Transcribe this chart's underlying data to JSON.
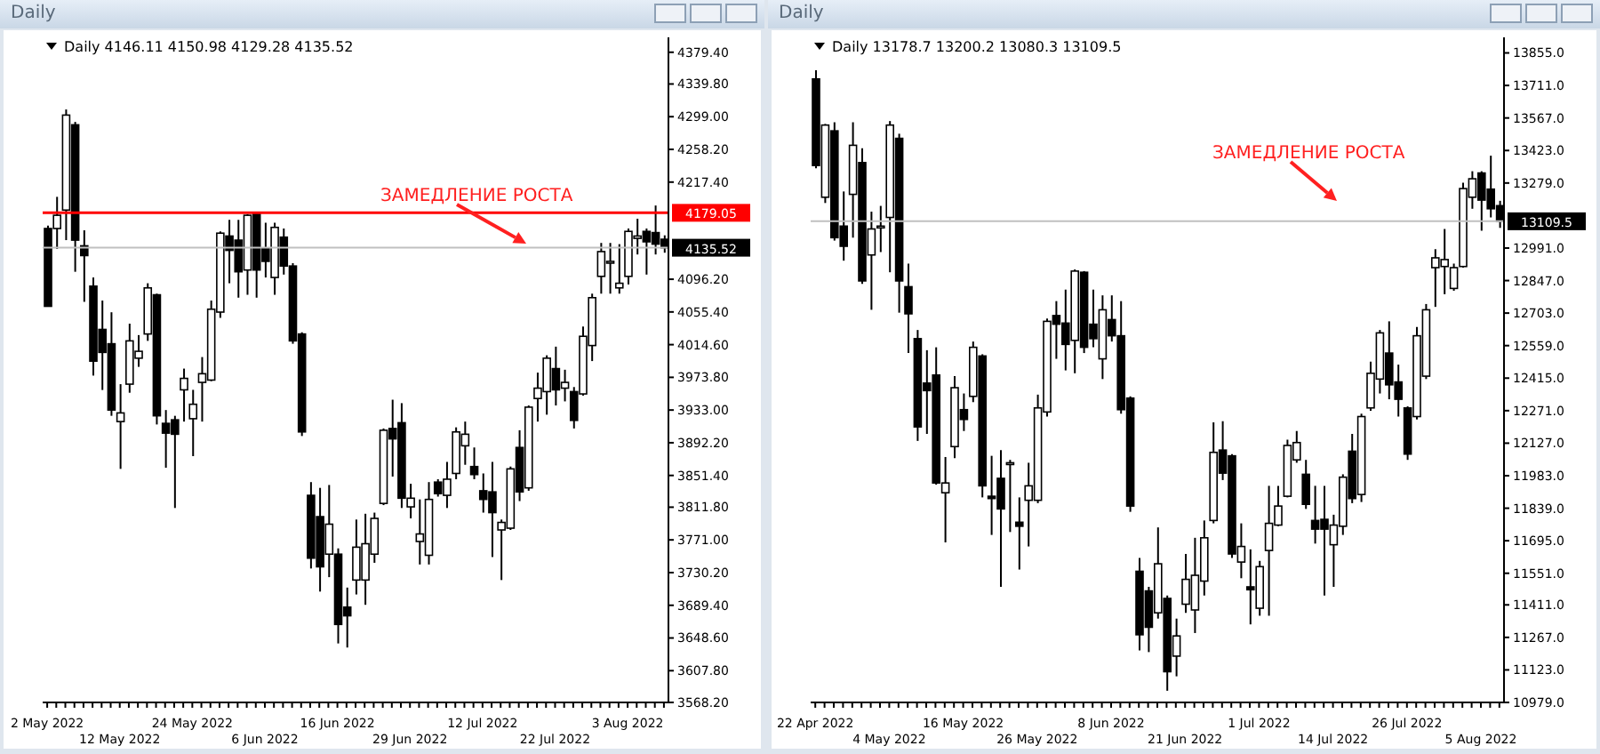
{
  "chart_data": [
    {
      "type": "candlestick",
      "title": "Daily",
      "subtitle": "Daily 4146.11 4150.98 4129.28 4135.52",
      "color": "#000000",
      "annotations": [
        "ЗАМЕДЛЕНИЕ РОСТА"
      ],
      "legend": false,
      "grid": false,
      "categories": [
        "2 May 2022",
        null,
        null,
        null,
        null,
        null,
        null,
        null,
        "12 May 2022",
        null,
        null,
        null,
        null,
        null,
        null,
        null,
        "24 May 2022",
        null,
        null,
        null,
        null,
        null,
        null,
        null,
        "6 Jun 2022",
        null,
        null,
        null,
        null,
        null,
        null,
        null,
        "16 Jun 2022",
        null,
        null,
        null,
        null,
        null,
        null,
        null,
        "29 Jun 2022",
        null,
        null,
        null,
        null,
        null,
        null,
        null,
        "12 Jul 2022",
        null,
        null,
        null,
        null,
        null,
        null,
        null,
        "22 Jul 2022",
        null,
        null,
        null,
        null,
        null,
        null,
        null,
        "3 Aug 2022",
        null,
        null,
        null,
        null
      ],
      "ohlc": [
        [
          4159.5,
          4163,
          4062,
          4062.4
        ],
        [
          4159.5,
          4199,
          4134,
          4176
        ],
        [
          4182.5,
          4308,
          4145,
          4301
        ],
        [
          4288.9,
          4292.5,
          4105.5,
          4145
        ],
        [
          4137.9,
          4157.3,
          4068,
          4125.7
        ],
        [
          4087.6,
          4098.4,
          3976,
          3994
        ],
        [
          4033.6,
          4069.6,
          3958,
          4004.9
        ],
        [
          4015.7,
          4055,
          3925.8,
          3933
        ],
        [
          3918.6,
          3965.3,
          3859.6,
          3929.4
        ],
        [
          3965.3,
          4040.8,
          3954.6,
          4019.3
        ],
        [
          3997.7,
          4026.5,
          3986.9,
          4006.3
        ],
        [
          4027.9,
          4091.2,
          4019.3,
          4085.4
        ],
        [
          4076.8,
          4078.2,
          3915,
          3925.8
        ],
        [
          3916.4,
          3933,
          3861,
          3904.2
        ],
        [
          3920.8,
          3925.8,
          3810.8,
          3902.8
        ],
        [
          3958.2,
          3984.7,
          3918.6,
          3972.5
        ],
        [
          3922.2,
          3958.2,
          3875.5,
          3940.2
        ],
        [
          3967.5,
          3999.1,
          3918.6,
          3978.3
        ],
        [
          3970.4,
          4069.6,
          3969,
          4058.8
        ],
        [
          4055.2,
          4155.9,
          4048,
          4153.7
        ],
        [
          4150.1,
          4170.3,
          4091.2,
          4132.2
        ],
        [
          4145,
          4170.3,
          4073.2,
          4105.5
        ],
        [
          4107.7,
          4177.4,
          4076.8,
          4176
        ],
        [
          4177.4,
          4178.9,
          4073.2,
          4107.7
        ],
        [
          4134.3,
          4166.7,
          4098.4,
          4118.5
        ],
        [
          4098.4,
          4166.7,
          4076.8,
          4160.9
        ],
        [
          4148.7,
          4159.5,
          4102,
          4112.7
        ],
        [
          4112.7,
          4116.3,
          4015.7,
          4019.3
        ],
        [
          4027.9,
          4030,
          3900.6,
          3905.7
        ],
        [
          3826.6,
          3843.1,
          3735.3,
          3748.2
        ],
        [
          3800,
          3835.9,
          3706.5,
          3737.4
        ],
        [
          3753.2,
          3839.5,
          3724.5,
          3790.6
        ],
        [
          3753.2,
          3760.4,
          3641.8,
          3665.5
        ],
        [
          3687.1,
          3711.5,
          3636.7,
          3676.3
        ],
        [
          3720.9,
          3796.4,
          3702.9,
          3761.9
        ],
        [
          3720.9,
          3803.6,
          3690,
          3766.2
        ],
        [
          3753.2,
          3805,
          3742.4,
          3797.8
        ],
        [
          3816.5,
          3910,
          3814.4,
          3907.8
        ],
        [
          3910,
          3945.9,
          3850,
          3897
        ],
        [
          3917.2,
          3941.6,
          3810.8,
          3823
        ],
        [
          3812.2,
          3841,
          3797.8,
          3823
        ],
        [
          3769,
          3821.5,
          3740.3,
          3778.4
        ],
        [
          3751.8,
          3843.1,
          3740.3,
          3821.5
        ],
        [
          3843.1,
          3846.7,
          3825,
          3828.7
        ],
        [
          3826.6,
          3868.3,
          3810.8,
          3846.7
        ],
        [
          3853.9,
          3911.4,
          3846.7,
          3905.7
        ],
        [
          3888.4,
          3918.6,
          3864.7,
          3902.8
        ],
        [
          3862.5,
          3886.3,
          3846.7,
          3852.5
        ],
        [
          3832.3,
          3853.9,
          3805,
          3821.5
        ],
        [
          3830.9,
          3868.3,
          3749.6,
          3805
        ],
        [
          3783.4,
          3796.4,
          3720.9,
          3792.8
        ],
        [
          3785.6,
          3862.5,
          3783.4,
          3859.6
        ],
        [
          3886.3,
          3907.8,
          3819.4,
          3830.9
        ],
        [
          3835.9,
          3938.7,
          3832.3,
          3936.6
        ],
        [
          3947.4,
          3979.7,
          3918.6,
          3960.3
        ],
        [
          3956,
          4001.3,
          3927.2,
          3997.7
        ],
        [
          3984.7,
          4012.1,
          3938.7,
          3958.2
        ],
        [
          3960.3,
          3983.3,
          3943.8,
          3967.5
        ],
        [
          3956,
          3961.7,
          3910,
          3920.1
        ],
        [
          3953.1,
          4037.2,
          3951,
          4025
        ],
        [
          4013.5,
          4078.2,
          3994.1,
          4073.2
        ],
        [
          4099.8,
          4141.5,
          4078.2,
          4130.7
        ],
        [
          4116.3,
          4141.5,
          4078.2,
          4118.5
        ],
        [
          4085.4,
          4140,
          4078.2,
          4091.2
        ],
        [
          4099.8,
          4159.5,
          4089.7,
          4155.9
        ],
        [
          4147.2,
          4171.7,
          4127.1,
          4150.1
        ],
        [
          4155.9,
          4159.5,
          4102,
          4142.9
        ],
        [
          4154.4,
          4188.2,
          4127.1,
          4140
        ],
        [
          4146.11,
          4150.98,
          4129.28,
          4135.52
        ]
      ],
      "ylim": [
        3568.2,
        4398
      ],
      "yticks": [
        {
          "value": 3568.2,
          "label": "3568.20"
        },
        {
          "value": 3607.8,
          "label": "3607.80"
        },
        {
          "value": 3648.6,
          "label": "3648.60"
        },
        {
          "value": 3689.4,
          "label": "3689.40"
        },
        {
          "value": 3730.2,
          "label": "3730.20"
        },
        {
          "value": 3771,
          "label": "3771.00"
        },
        {
          "value": 3811.8,
          "label": "3811.80"
        },
        {
          "value": 3851.4,
          "label": "3851.40"
        },
        {
          "value": 3892.2,
          "label": "3892.20"
        },
        {
          "value": 3933,
          "label": "3933.00"
        },
        {
          "value": 3973.8,
          "label": "3973.80"
        },
        {
          "value": 4014.6,
          "label": "4014.60"
        },
        {
          "value": 4055.4,
          "label": "4055.40"
        },
        {
          "value": 4096.2,
          "label": "4096.20"
        },
        {
          "value": 4217.4,
          "label": "4217.40"
        },
        {
          "value": 4258.2,
          "label": "4258.20"
        },
        {
          "value": 4299,
          "label": "4299.00"
        },
        {
          "value": 4339.8,
          "label": "4339.80"
        },
        {
          "value": 4379.4,
          "label": "4379.40"
        }
      ],
      "ref_lines": [
        {
          "axis": "y",
          "value": 4179.05,
          "label": "4179.05",
          "color": "#ff0000"
        },
        {
          "axis": "y",
          "value": 4135.52,
          "label": "4135.52",
          "color": "#c0c0c0"
        }
      ]
    },
    {
      "type": "candlestick",
      "title": "Daily",
      "subtitle": "Daily 13178.7 13200.2 13080.3 13109.5",
      "color": "#000000",
      "annotations": [
        "ЗАМЕДЛЕНИЕ РОСТА"
      ],
      "legend": false,
      "grid": false,
      "categories": [
        "22 Apr 2022",
        null,
        null,
        null,
        null,
        null,
        null,
        null,
        "4 May 2022",
        null,
        null,
        null,
        null,
        null,
        null,
        null,
        "16 May 2022",
        null,
        null,
        null,
        null,
        null,
        null,
        null,
        "26 May 2022",
        null,
        null,
        null,
        null,
        null,
        null,
        null,
        "8 Jun 2022",
        null,
        null,
        null,
        null,
        null,
        null,
        null,
        "21 Jun 2022",
        null,
        null,
        null,
        null,
        null,
        null,
        null,
        "1 Jul 2022",
        null,
        null,
        null,
        null,
        null,
        null,
        null,
        "14 Jul 2022",
        null,
        null,
        null,
        null,
        null,
        null,
        null,
        "26 Jul 2022",
        null,
        null,
        null,
        null,
        null,
        null,
        null,
        "5 Aug 2022",
        null,
        null
      ],
      "ohlc": [
        [
          13740,
          13778.4,
          13343.8,
          13356.6
        ],
        [
          13216,
          13540.6,
          13190.5,
          13535.5
        ],
        [
          13510,
          13548,
          13024,
          13037
        ],
        [
          13088.2,
          13241.6,
          12935,
          12998.8
        ],
        [
          13228.8,
          13548,
          13037,
          13446
        ],
        [
          13369.4,
          13433.3,
          12832.6,
          12845.4
        ],
        [
          12960.4,
          13152.2,
          12717.6,
          13075.5
        ],
        [
          13080.6,
          13177.7,
          12973.2,
          13088.2
        ],
        [
          13126.6,
          13553.4,
          12883.8,
          13535.5
        ],
        [
          13476.8,
          13497.2,
          12704.8,
          12845.4
        ],
        [
          12819.9,
          12922.1,
          12526,
          12699.7
        ],
        [
          12589.8,
          12628.2,
          12137,
          12199
        ],
        [
          12393,
          12538.7,
          12168.1,
          12359.8
        ],
        [
          12428.8,
          12551.5,
          11943.2,
          11950.8
        ],
        [
          11907.4,
          12065.8,
          11687.5,
          11950.8
        ],
        [
          12111.8,
          12423.7,
          12060.7,
          12372.6
        ],
        [
          12275.4,
          12347,
          12180.9,
          12232
        ],
        [
          12334.3,
          12577,
          12308.7,
          12551.5
        ],
        [
          12513.1,
          12520.7,
          11886.9,
          11938.1
        ],
        [
          11892,
          12071,
          11720.7,
          11881.8
        ],
        [
          11971.3,
          12096.5,
          11490.8,
          11835.8
        ],
        [
          12035.2,
          12053,
          11733.6,
          12040.3
        ],
        [
          11777,
          11886.9,
          11567.4,
          11759.1
        ],
        [
          11874.1,
          12040.3,
          11669.6,
          11938.1
        ],
        [
          11874.1,
          12341.9,
          11861.4,
          12283.1
        ],
        [
          12265.2,
          12679.3,
          12244.8,
          12666.5
        ],
        [
          12692,
          12756,
          12500.4,
          12653.7
        ],
        [
          12658.8,
          12807,
          12449.2,
          12564.3
        ],
        [
          12582.2,
          12896.5,
          12436.5,
          12889
        ],
        [
          12883.8,
          12889,
          12526,
          12551.5
        ],
        [
          12653.7,
          12807,
          12551.5,
          12589.8
        ],
        [
          12500.4,
          12781.5,
          12410.9,
          12717.6
        ],
        [
          12674.2,
          12781.5,
          12577,
          12602.6
        ],
        [
          12602.6,
          12756,
          12257.5,
          12275.4
        ],
        [
          12326.6,
          12334.3,
          11823,
          11848.6
        ],
        [
          11559.8,
          11618.5,
          11209.6,
          11278.6
        ],
        [
          11472.8,
          11490.8,
          11201.9,
          11311.8
        ],
        [
          11375.7,
          11754,
          11350.2,
          11593
        ],
        [
          11439.6,
          11452.4,
          11030.7,
          11115
        ],
        [
          11184,
          11350.2,
          11094.6,
          11273.5
        ],
        [
          11414,
          11636.4,
          11375.7,
          11524
        ],
        [
          11388.5,
          11708,
          11286.3,
          11541.9
        ],
        [
          11516.3,
          11784.7,
          11452.4,
          11708
        ],
        [
          11784.7,
          12219.2,
          11772,
          12086.3
        ],
        [
          12096.5,
          12224.3,
          11963.6,
          11994.3
        ],
        [
          12071,
          12078.6,
          11618.5,
          11636.4
        ],
        [
          11600.6,
          11772,
          11529,
          11669.6
        ],
        [
          11490.8,
          11656.9,
          11324.6,
          11478
        ],
        [
          11396.1,
          11605.8,
          11362.9,
          11580.2
        ],
        [
          11651.8,
          11938.1,
          11362.9,
          11772
        ],
        [
          11764.3,
          11938.1,
          11759.1,
          11848.6
        ],
        [
          11892,
          12142.5,
          11886.9,
          12117
        ],
        [
          12053,
          12180.9,
          12040.3,
          12129.7
        ],
        [
          11989.2,
          12053,
          11835.8,
          11856.2
        ],
        [
          11784.7,
          11938.1,
          11682.4,
          11746.4
        ],
        [
          11789.8,
          11938.1,
          11452.4,
          11746.4
        ],
        [
          11677.3,
          11810.2,
          11490.8,
          11764.3
        ],
        [
          11759.1,
          11989.2,
          11720.7,
          11976.4
        ],
        [
          12091.4,
          12168.1,
          11861.4,
          11881.8
        ],
        [
          11899.7,
          12257.5,
          11866.5,
          12244.8
        ],
        [
          12283.1,
          12487.6,
          12270.3,
          12436.5
        ],
        [
          12410.9,
          12628.2,
          12347,
          12615.4
        ],
        [
          12526,
          12666.5,
          12321.4,
          12385.4
        ],
        [
          12398.1,
          12474.8,
          12244.8,
          12321.4
        ],
        [
          12283.1,
          12290,
          12053,
          12078.6
        ],
        [
          12244.8,
          12641,
          12232,
          12602.6
        ],
        [
          12423.7,
          12743.2,
          12410.9,
          12717.6
        ],
        [
          12904.2,
          12986,
          12730.4,
          12947.7
        ],
        [
          12909.3,
          13075.5,
          12786.6,
          12940
        ],
        [
          12812.2,
          12922.1,
          12802,
          12904.2
        ],
        [
          12909.3,
          13280,
          12904.2,
          13254.4
        ],
        [
          13216,
          13331.1,
          13165,
          13297.8
        ],
        [
          13323.4,
          13331.1,
          13067.8,
          13203.3
        ],
        [
          13251.8,
          13400,
          13126.6,
          13165
        ],
        [
          13178.7,
          13200.2,
          13080.3,
          13109.5
        ]
      ],
      "ylim": [
        10979,
        13924
      ],
      "yticks": [
        {
          "value": 10979,
          "label": "10979.0"
        },
        {
          "value": 11123,
          "label": "11123.0"
        },
        {
          "value": 11267,
          "label": "11267.0"
        },
        {
          "value": 11411,
          "label": "11411.0"
        },
        {
          "value": 11551,
          "label": "11551.0"
        },
        {
          "value": 11695,
          "label": "11695.0"
        },
        {
          "value": 11839,
          "label": "11839.0"
        },
        {
          "value": 11983,
          "label": "11983.0"
        },
        {
          "value": 12127,
          "label": "12127.0"
        },
        {
          "value": 12271,
          "label": "12271.0"
        },
        {
          "value": 12415,
          "label": "12415.0"
        },
        {
          "value": 12559,
          "label": "12559.0"
        },
        {
          "value": 12703,
          "label": "12703.0"
        },
        {
          "value": 12847,
          "label": "12847.0"
        },
        {
          "value": 12991,
          "label": "12991.0"
        },
        {
          "value": 13279,
          "label": "13279.0"
        },
        {
          "value": 13423,
          "label": "13423.0"
        },
        {
          "value": 13567,
          "label": "13567.0"
        },
        {
          "value": 13711,
          "label": "13711.0"
        },
        {
          "value": 13855,
          "label": "13855.0"
        }
      ],
      "ref_lines": [
        {
          "axis": "y",
          "value": 13109.5,
          "label": "13109.5",
          "color": "#c0c0c0"
        }
      ]
    }
  ]
}
